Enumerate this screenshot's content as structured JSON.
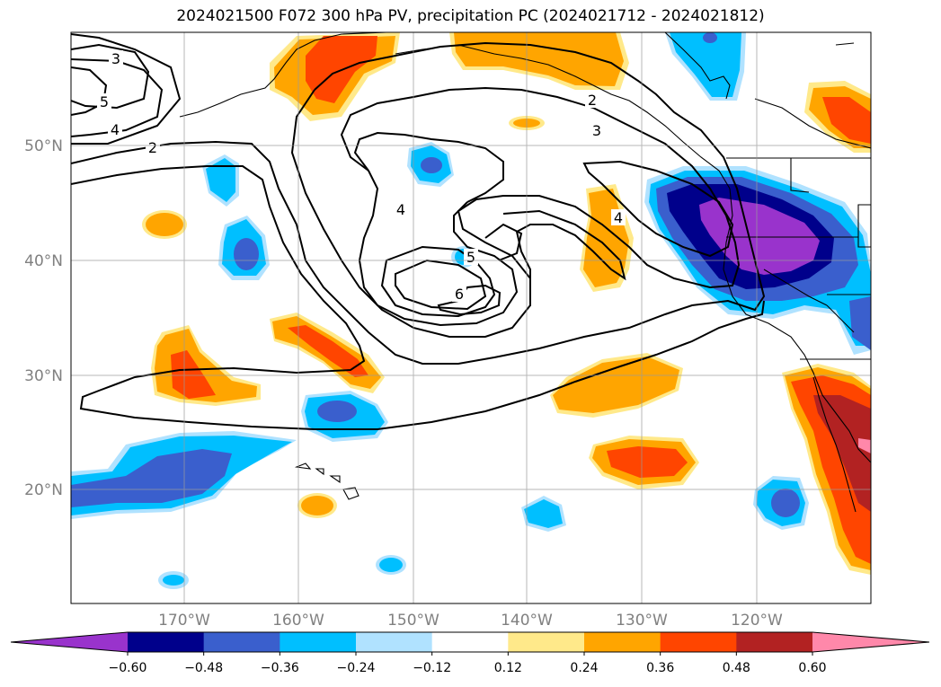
{
  "title": "2024021500 F072 300 hPa PV, precipitation PC (2024021712 - 2024021812)",
  "lat_labels": [
    "50°N",
    "40°N",
    "30°N",
    "20°N"
  ],
  "lon_labels": [
    "170°W",
    "160°W",
    "150°W",
    "140°W",
    "130°W",
    "120°W"
  ],
  "contour_labels": [
    "3",
    "5",
    "4",
    "2",
    "4",
    "5",
    "6",
    "2",
    "3",
    "4"
  ],
  "colorbar": {
    "ticks": [
      "−0.60",
      "−0.48",
      "−0.36",
      "−0.24",
      "−0.12",
      "0.12",
      "0.24",
      "0.36",
      "0.48",
      "0.60"
    ],
    "colors": [
      "#9933cc",
      "#00008b",
      "#3a5fcd",
      "#00bfff",
      "#b0e2ff",
      "#ffffff",
      "#ffe98a",
      "#ffa500",
      "#ff4500",
      "#b22222",
      "#ff88aa"
    ]
  },
  "shading_colors": {
    "neg_012": "#b0e2ff",
    "neg_024": "#00bfff",
    "neg_036": "#3a5fcd",
    "neg_048": "#00008b",
    "neg_060": "#9933cc",
    "pos_012": "#ffe98a",
    "pos_024": "#ffa500",
    "pos_036": "#ff4500",
    "pos_048": "#b22222",
    "pos_060": "#ff88aa"
  }
}
